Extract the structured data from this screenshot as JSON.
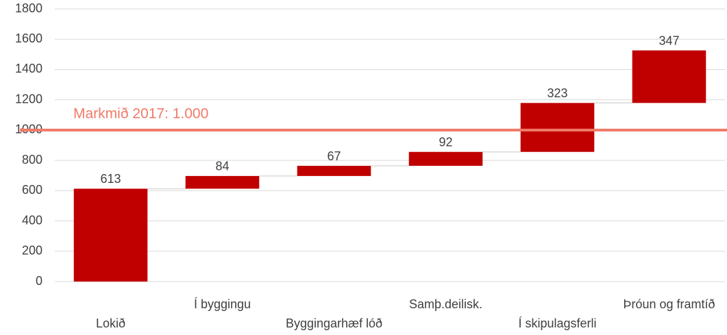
{
  "chart_data": {
    "type": "waterfall",
    "categories": [
      "Lokið",
      "Í byggingu",
      "Byggingarhæf lóð",
      "Samþ.deilisk.",
      "Í skipulagsferli",
      "Þróun og framtíð"
    ],
    "values": [
      613,
      84,
      67,
      92,
      323,
      347
    ],
    "color": "#c00000",
    "ylim": [
      0,
      1800
    ],
    "yticks": [
      0,
      200,
      400,
      600,
      800,
      1000,
      1200,
      1400,
      1600,
      1800
    ],
    "grid": true,
    "reference": {
      "value": 1000,
      "label": "Markmið 2017: 1.000",
      "color": "#f07a68"
    }
  }
}
